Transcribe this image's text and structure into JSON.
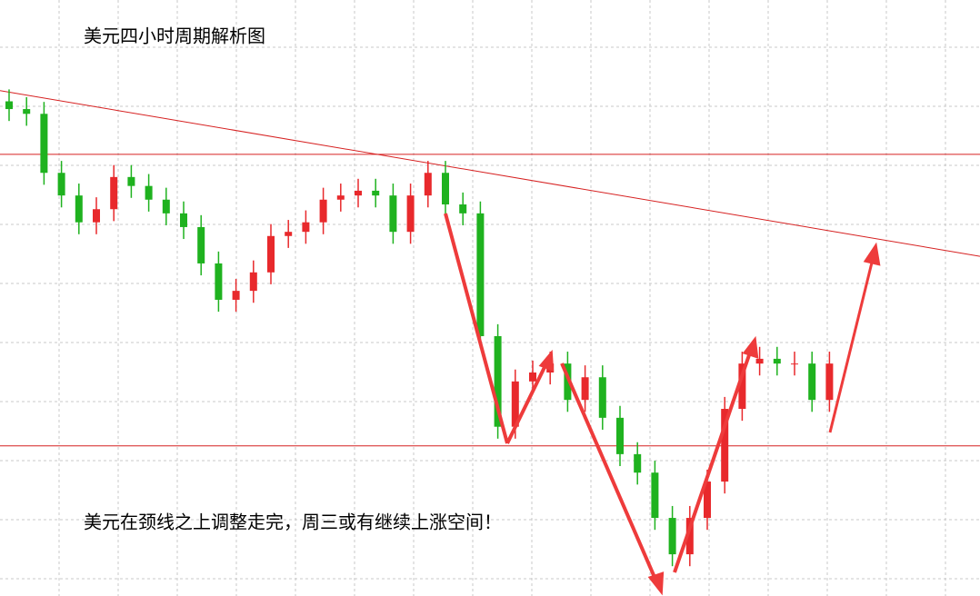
{
  "chart_data": {
    "type": "candlestick",
    "title": "美元四小时周期解析图",
    "annotation": "美元在颈线之上调整走完，周三或有继续上涨空间！",
    "ylim": [
      0,
      100
    ],
    "up_color": "#e8292c",
    "down_color": "#1fb21f",
    "levels": [
      74.1,
      25.2
    ],
    "trendline": [
      84.8,
      57.0
    ],
    "open": [
      83.0,
      81.7,
      80.9,
      71.0,
      67.2,
      62.7,
      64.9,
      70.3,
      68.8,
      66.5,
      64.2,
      61.9,
      55.8,
      49.7,
      51.2,
      54.3,
      60.4,
      61.1,
      62.7,
      66.5,
      67.2,
      68.0,
      67.2,
      61.1,
      67.2,
      71.0,
      65.7,
      64.2,
      43.6,
      28.4,
      36.0,
      37.5,
      39.0,
      32.9,
      36.7,
      29.9,
      23.8,
      20.7,
      13.1,
      7.0,
      13.1,
      19.2,
      31.4,
      39.0,
      39.8,
      39.0,
      39.0,
      32.9
    ],
    "high": [
      85.0,
      83.7,
      82.9,
      73.0,
      69.2,
      66.9,
      72.3,
      72.3,
      70.8,
      68.5,
      66.2,
      63.9,
      57.8,
      53.2,
      56.3,
      62.4,
      63.1,
      64.7,
      68.5,
      69.2,
      70.0,
      70.0,
      69.2,
      69.2,
      73.0,
      73.0,
      67.7,
      66.2,
      45.6,
      38.0,
      39.5,
      41.0,
      41.0,
      38.7,
      38.7,
      31.9,
      25.8,
      22.7,
      15.1,
      15.1,
      21.2,
      33.4,
      41.0,
      41.8,
      41.8,
      41.0,
      41.0,
      41.0
    ],
    "low": [
      79.7,
      78.9,
      69.0,
      65.2,
      60.7,
      60.7,
      62.9,
      66.8,
      64.5,
      62.2,
      59.9,
      53.8,
      47.7,
      47.7,
      49.2,
      52.3,
      58.4,
      59.1,
      60.7,
      64.5,
      65.2,
      65.2,
      59.1,
      59.1,
      65.2,
      63.7,
      62.2,
      41.6,
      26.4,
      26.4,
      34.0,
      35.5,
      30.9,
      30.9,
      27.9,
      21.8,
      18.7,
      11.1,
      5.0,
      5.0,
      11.1,
      17.2,
      29.4,
      37.0,
      37.0,
      37.0,
      30.9,
      30.9
    ],
    "close": [
      81.7,
      80.9,
      71.0,
      67.2,
      62.7,
      64.9,
      70.3,
      68.8,
      66.5,
      64.2,
      61.9,
      55.8,
      49.7,
      51.2,
      54.3,
      60.4,
      61.1,
      62.7,
      66.5,
      67.2,
      68.0,
      67.2,
      61.1,
      67.2,
      71.0,
      65.7,
      64.2,
      43.6,
      28.4,
      36.0,
      37.5,
      39.0,
      32.9,
      36.7,
      29.9,
      23.8,
      20.7,
      13.1,
      7.0,
      13.1,
      19.2,
      31.4,
      39.0,
      39.8,
      39.0,
      39.0,
      32.9,
      39.0
    ]
  }
}
